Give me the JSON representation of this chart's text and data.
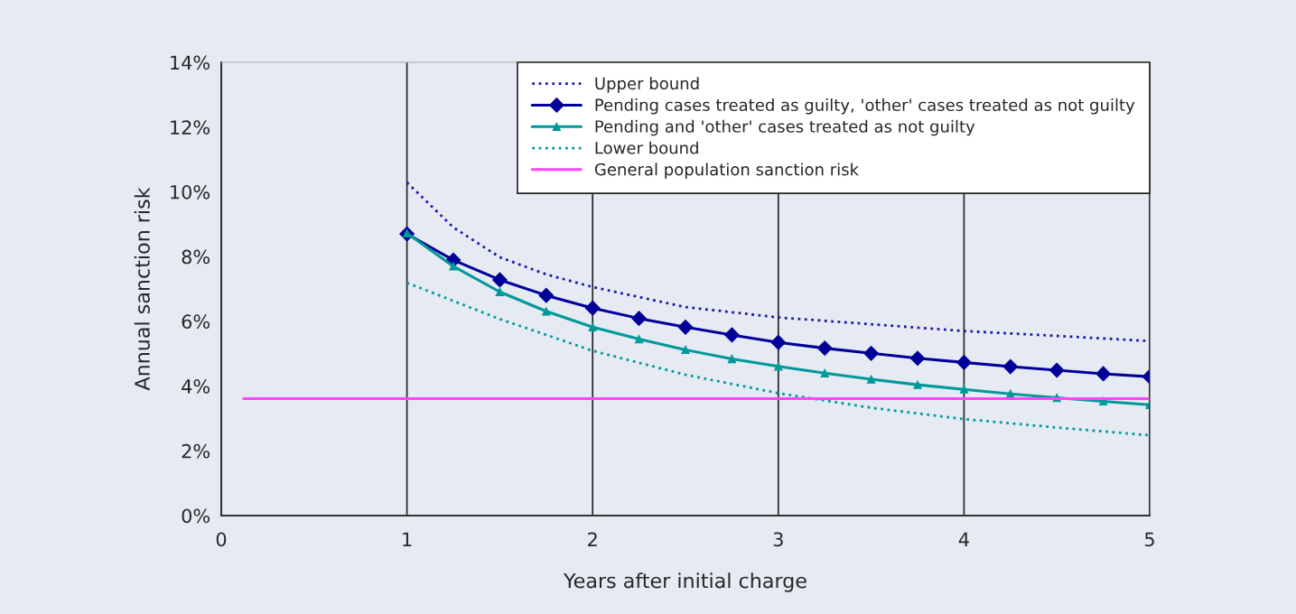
{
  "chart_data": {
    "type": "line",
    "xlabel": "Years after initial charge",
    "ylabel": "Annual sanction risk",
    "xlim": [
      0,
      5
    ],
    "xticks": [
      0,
      1,
      2,
      3,
      4,
      5
    ],
    "ylim": [
      0,
      14
    ],
    "yticks": [
      {
        "value": 0,
        "label": "0%"
      },
      {
        "value": 2,
        "label": "2%"
      },
      {
        "value": 4,
        "label": "4%"
      },
      {
        "value": 6,
        "label": "6%"
      },
      {
        "value": 8,
        "label": "8%"
      },
      {
        "value": 10,
        "label": "10%"
      },
      {
        "value": 12,
        "label": "12%"
      },
      {
        "value": 14,
        "label": "14%"
      }
    ],
    "grid": "x",
    "legend": "top right",
    "series": [
      {
        "name": "Upper bound",
        "color": "#1a1aa8",
        "line_style": "dotted",
        "marker": "none",
        "x": [
          1,
          1.25,
          1.5,
          1.75,
          2,
          2.5,
          3,
          3.5,
          4,
          4.5,
          5
        ],
        "values": [
          10.29,
          8.9,
          7.98,
          7.45,
          7.06,
          6.44,
          6.12,
          5.91,
          5.7,
          5.55,
          5.39
        ]
      },
      {
        "name": "Pending cases treated as guilty, 'other' cases treated as not guilty",
        "color": "#000099",
        "line_style": "solid",
        "marker": "diamond",
        "x": [
          1,
          1.25,
          1.5,
          1.75,
          2,
          2.25,
          2.5,
          2.75,
          3,
          3.25,
          3.5,
          3.75,
          4,
          4.25,
          4.5,
          4.75,
          5
        ],
        "values": [
          8.7,
          7.89,
          7.28,
          6.8,
          6.41,
          6.09,
          5.82,
          5.58,
          5.35,
          5.17,
          5.01,
          4.86,
          4.73,
          4.6,
          4.49,
          4.38,
          4.29
        ]
      },
      {
        "name": "Pending and 'other' cases treated as not guilty",
        "color": "#009999",
        "line_style": "solid",
        "marker": "triangle",
        "x": [
          1,
          1.25,
          1.5,
          1.75,
          2,
          2.25,
          2.5,
          2.75,
          3,
          3.25,
          3.5,
          3.75,
          4,
          4.25,
          4.5,
          4.75,
          5
        ],
        "values": [
          8.72,
          7.7,
          6.91,
          6.31,
          5.82,
          5.45,
          5.12,
          4.84,
          4.61,
          4.4,
          4.21,
          4.04,
          3.9,
          3.76,
          3.64,
          3.53,
          3.42
        ]
      },
      {
        "name": "Lower bound",
        "color": "#009999",
        "line_style": "dotted",
        "marker": "none",
        "x": [
          1,
          1.5,
          2,
          2.5,
          3,
          3.5,
          4,
          4.5,
          5
        ],
        "values": [
          7.19,
          6.07,
          5.09,
          4.35,
          3.78,
          3.33,
          2.98,
          2.72,
          2.48
        ]
      },
      {
        "name": "General population sanction risk",
        "color": "#ff44ff",
        "line_style": "solid",
        "marker": "none",
        "x": [
          0.12,
          5
        ],
        "values": [
          3.61,
          3.61
        ]
      }
    ]
  }
}
